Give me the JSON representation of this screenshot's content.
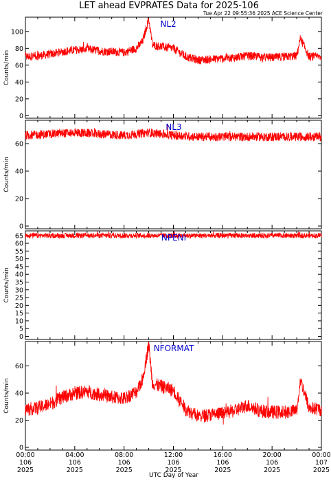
{
  "title": "LET ahead EVPRATES Data for 2025-106",
  "timestamp": "Tue Apr 22 09:55:36 2025 ACE Science Center",
  "xlabel": "UTC Day of Year",
  "x_ticks": [
    {
      "hour": 0,
      "time": "00:00",
      "doy": "106",
      "year": "2025"
    },
    {
      "hour": 4,
      "time": "04:00",
      "doy": "106",
      "year": "2025"
    },
    {
      "hour": 8,
      "time": "08:00",
      "doy": "106",
      "year": "2025"
    },
    {
      "hour": 12,
      "time": "12:00",
      "doy": "106",
      "year": "2025"
    },
    {
      "hour": 16,
      "time": "16:00",
      "doy": "106",
      "year": "2025"
    },
    {
      "hour": 20,
      "time": "20:00",
      "doy": "106",
      "year": "2025"
    },
    {
      "hour": 24,
      "time": "00:00",
      "doy": "107",
      "year": "2025"
    }
  ],
  "colors": {
    "series": "#ff0000",
    "label": "#0000cc",
    "axes": "#000000"
  },
  "chart_data": [
    {
      "type": "line",
      "name": "NL2",
      "ylabel": "Counts/min",
      "ylim": [
        -3,
        117
      ],
      "xlim": [
        0,
        24
      ],
      "yticks": [
        0,
        20,
        40,
        60,
        80,
        100
      ],
      "series": [
        {
          "name": "NL2",
          "x": [
            0,
            1,
            2,
            3,
            4,
            5,
            6,
            7,
            8,
            9,
            9.5,
            10,
            10.3,
            11,
            12,
            13,
            14,
            15,
            16,
            17,
            18,
            19,
            20,
            21,
            22,
            22.3,
            23,
            24
          ],
          "values": [
            70,
            71,
            73,
            76,
            78,
            79,
            77,
            76,
            75,
            80,
            88,
            115,
            84,
            82,
            80,
            70,
            66,
            67,
            68,
            69,
            71,
            70,
            69,
            70,
            71,
            92,
            70,
            70
          ]
        }
      ]
    },
    {
      "type": "line",
      "name": "NL3",
      "ylabel": "Counts/min",
      "ylim": [
        -2,
        77
      ],
      "xlim": [
        0,
        24
      ],
      "yticks": [
        0,
        20,
        40,
        60
      ],
      "series": [
        {
          "name": "NL3",
          "x": [
            0,
            2,
            4,
            6,
            8,
            10,
            12,
            14,
            16,
            18,
            20,
            22,
            24
          ],
          "values": [
            66,
            67,
            68,
            67,
            66,
            68,
            66,
            65,
            65,
            65,
            65,
            65,
            65
          ]
        }
      ]
    },
    {
      "type": "line",
      "name": "NPENI",
      "ylabel": "Counts/min",
      "ylim": [
        -2,
        68
      ],
      "xlim": [
        0,
        24
      ],
      "yticks": [
        0,
        5,
        10,
        15,
        20,
        25,
        30,
        35,
        40,
        45,
        50,
        55,
        60,
        65
      ],
      "series": [
        {
          "name": "NPENI",
          "x": [
            0,
            4,
            8,
            12,
            16,
            20,
            24
          ],
          "values": [
            65,
            65,
            65,
            65,
            65,
            65,
            65
          ]
        }
      ]
    },
    {
      "type": "line",
      "name": "NFORMAT",
      "ylabel": "Counts/min",
      "ylim": [
        -2,
        78
      ],
      "xlim": [
        0,
        24
      ],
      "yticks": [
        0,
        20,
        40,
        60
      ],
      "series": [
        {
          "name": "NFORMAT",
          "x": [
            0,
            1,
            2,
            3,
            4,
            5,
            6,
            7,
            8,
            9,
            9.5,
            10,
            10.3,
            11,
            12,
            13,
            14,
            15,
            16,
            17,
            18,
            19,
            20,
            21,
            22,
            22.3,
            23,
            24
          ],
          "values": [
            28,
            29,
            32,
            37,
            40,
            41,
            39,
            37,
            36,
            41,
            50,
            76,
            47,
            45,
            42,
            28,
            23,
            24,
            25,
            27,
            31,
            27,
            26,
            26,
            27,
            50,
            29,
            28
          ]
        }
      ]
    }
  ]
}
